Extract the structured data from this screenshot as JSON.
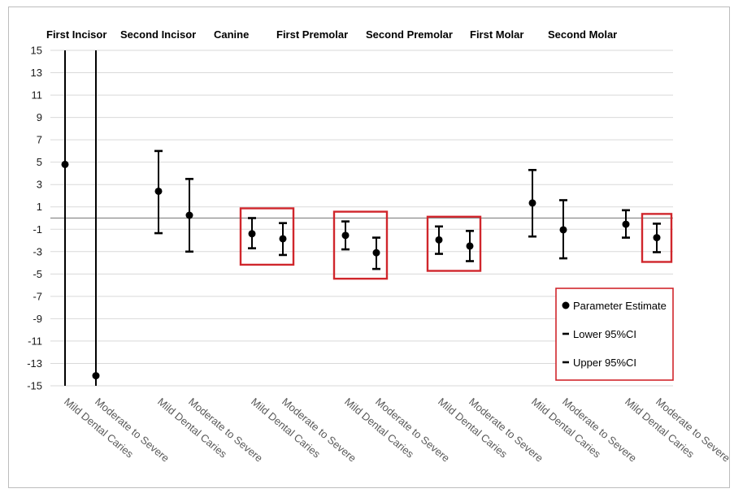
{
  "chart_data": {
    "type": "scatter",
    "groups": [
      "First Incisor",
      "Second Incisor",
      "Canine",
      "First Premolar",
      "Second Premolar",
      "First Molar",
      "Second  Molar"
    ],
    "categories": [
      "Mild Dental Caries",
      "Moderate to Severe"
    ],
    "ylim": [
      -15,
      15
    ],
    "yticks": [
      15,
      13,
      11,
      9,
      7,
      5,
      3,
      1,
      -1,
      -3,
      -5,
      -7,
      -9,
      -11,
      -13,
      -15
    ],
    "grid": true,
    "points": [
      {
        "group": "First Incisor",
        "category": "Mild Dental Caries",
        "estimate": 4.8,
        "lower": -15,
        "upper": 15
      },
      {
        "group": "First Incisor",
        "category": "Moderate to Severe",
        "estimate": -14.1,
        "lower": -15,
        "upper": 15
      },
      {
        "group": "Second Incisor",
        "category": "Mild Dental Caries",
        "estimate": 2.4,
        "lower": -1.35,
        "upper": 6.0
      },
      {
        "group": "Second Incisor",
        "category": "Moderate to Severe",
        "estimate": 0.25,
        "lower": -3.0,
        "upper": 3.5
      },
      {
        "group": "Canine",
        "category": "Mild Dental Caries",
        "estimate": -1.4,
        "lower": -2.7,
        "upper": 0.0
      },
      {
        "group": "Canine",
        "category": "Moderate to Severe",
        "estimate": -1.85,
        "lower": -3.3,
        "upper": -0.45
      },
      {
        "group": "First Premolar",
        "category": "Mild Dental Caries",
        "estimate": -1.55,
        "lower": -2.8,
        "upper": -0.3
      },
      {
        "group": "First Premolar",
        "category": "Moderate to Severe",
        "estimate": -3.1,
        "lower": -4.55,
        "upper": -1.75
      },
      {
        "group": "Second Premolar",
        "category": "Mild Dental Caries",
        "estimate": -1.95,
        "lower": -3.2,
        "upper": -0.75
      },
      {
        "group": "Second Premolar",
        "category": "Moderate to Severe",
        "estimate": -2.5,
        "lower": -3.85,
        "upper": -1.15
      },
      {
        "group": "First Molar",
        "category": "Mild Dental Caries",
        "estimate": 1.35,
        "lower": -1.65,
        "upper": 4.3
      },
      {
        "group": "First Molar",
        "category": "Moderate to Severe",
        "estimate": -1.05,
        "lower": -3.6,
        "upper": 1.6
      },
      {
        "group": "Second  Molar",
        "category": "Mild Dental Caries",
        "estimate": -0.55,
        "lower": -1.75,
        "upper": 0.7
      },
      {
        "group": "Second  Molar",
        "category": "Moderate to Severe",
        "estimate": -1.75,
        "lower": -3.05,
        "upper": -0.5
      }
    ],
    "highlighted_groups": [
      "Canine",
      "First Premolar",
      "Second Premolar"
    ],
    "highlighted_points": [
      {
        "group": "Second  Molar",
        "category": "Moderate to Severe"
      }
    ],
    "legend": {
      "placement": "bottom-right",
      "entries": [
        "Parameter Estimate",
        "Lower 95%CI",
        "Upper 95%CI"
      ]
    },
    "colors": {
      "highlight": "#d0262c",
      "marker": "#000000",
      "grid": "#d9d9d9"
    }
  }
}
